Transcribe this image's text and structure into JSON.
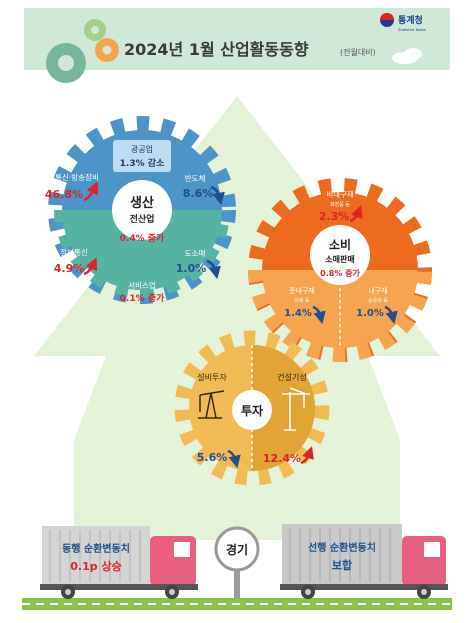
{
  "header": {
    "agency": "통계청",
    "agency_en": "Statistics Korea",
    "title": "2024년 1월 산업활동동향",
    "note": "(전월대비)"
  },
  "production": {
    "label": "생산",
    "sub": "전산업",
    "value": "0.4% 증가",
    "mining": {
      "label": "광공업",
      "value": "1.3% 감소",
      "direction": "down"
    },
    "telecom": {
      "label": "통신·방송장비",
      "value": "46.8%",
      "direction": "up"
    },
    "semiconductor": {
      "label": "반도체",
      "value": "8.6%",
      "direction": "down"
    },
    "info": {
      "label": "정보통신",
      "value": "4.9%",
      "direction": "up"
    },
    "retail": {
      "label": "도소매",
      "value": "1.0%",
      "direction": "down"
    },
    "service": {
      "label": "서비스업",
      "value": "0.1% 증가",
      "direction": "up"
    }
  },
  "consumption": {
    "label": "소비",
    "sub": "소매판매",
    "value": "0.8% 증가",
    "nondurable": {
      "label": "비내구재",
      "note": "화장품 등",
      "value": "2.3%",
      "direction": "up"
    },
    "semidurable": {
      "label": "준내구재",
      "note": "의복 등",
      "value": "1.4%",
      "direction": "down"
    },
    "durable": {
      "label": "내구재",
      "note": "승용차 등",
      "value": "1.0%",
      "direction": "down"
    }
  },
  "investment": {
    "label": "투자",
    "facility": {
      "label": "설비투자",
      "value": "5.6%",
      "direction": "down"
    },
    "construction": {
      "label": "건설기성",
      "value": "12.4%",
      "direction": "up"
    }
  },
  "economy": {
    "label": "경기",
    "coincident": {
      "line1": "동행 순환변동치",
      "line2": "0.1p 상승"
    },
    "leading": {
      "line1": "선행 순환변동치",
      "line2": "보합"
    }
  },
  "colors": {
    "header_bg": "#cfe8d8",
    "blue": "#4d94c8",
    "teal": "#57b3a2",
    "orange_dark": "#ec6b1f",
    "orange_light": "#f7a450",
    "yellow": "#f0bb55",
    "yellow_dark": "#e2a434",
    "red": "#d8262c",
    "arrow_blue": "#1f4f8c",
    "truck_pink": "#e85f7f",
    "truck_gray": "#c4c4c4",
    "road": "#8bc34a"
  }
}
